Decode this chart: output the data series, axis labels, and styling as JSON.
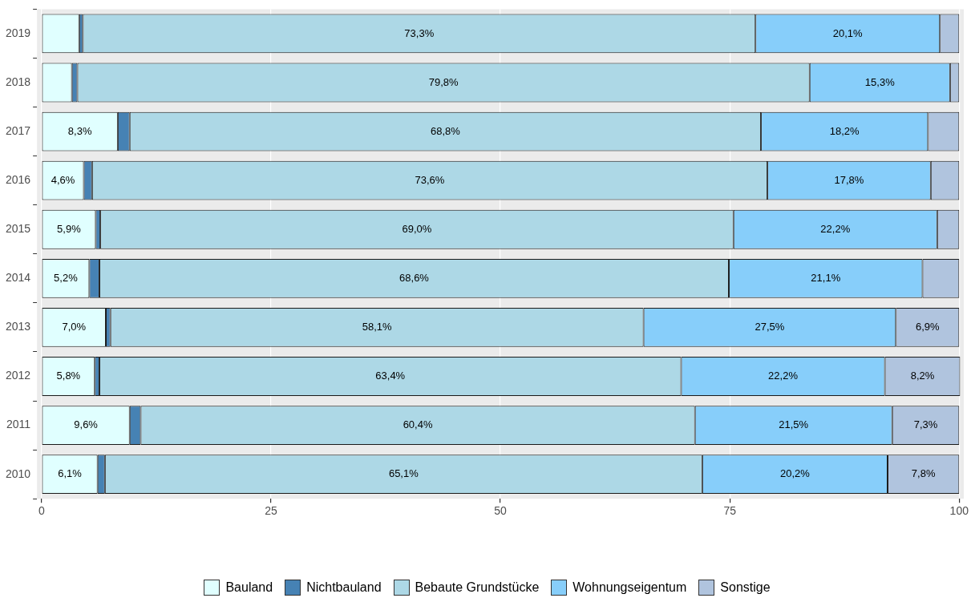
{
  "chart_data": {
    "type": "bar",
    "orientation": "horizontal",
    "stacked": true,
    "categories": [
      "2019",
      "2018",
      "2017",
      "2016",
      "2015",
      "2014",
      "2013",
      "2012",
      "2011",
      "2010"
    ],
    "series": [
      {
        "name": "Bauland",
        "color": "#e0ffff",
        "values": [
          4.1,
          3.3,
          8.3,
          4.6,
          5.9,
          5.2,
          7.0,
          5.8,
          9.6,
          6.1
        ],
        "value_labels": [
          null,
          null,
          "8,3%",
          "4,6%",
          "5,9%",
          "5,2%",
          "7,0%",
          "5,8%",
          "9,6%",
          "6,1%"
        ]
      },
      {
        "name": "Nichtbauland",
        "color": "#4682b4",
        "values": [
          0.4,
          0.6,
          1.3,
          0.9,
          0.5,
          1.1,
          0.5,
          0.5,
          1.2,
          0.8
        ],
        "value_labels": [
          null,
          null,
          null,
          null,
          null,
          null,
          null,
          null,
          null,
          null
        ]
      },
      {
        "name": "Bebaute Grundstücke",
        "color": "#add8e6",
        "values": [
          73.3,
          79.8,
          68.8,
          73.6,
          69.0,
          68.6,
          58.1,
          63.4,
          60.4,
          65.1
        ],
        "value_labels": [
          "73,3%",
          "79,8%",
          "68,8%",
          "73,6%",
          "69,0%",
          "68,6%",
          "58,1%",
          "63,4%",
          "60,4%",
          "65,1%"
        ]
      },
      {
        "name": "Wohnungseigentum",
        "color": "#87cefa",
        "values": [
          20.1,
          15.3,
          18.2,
          17.8,
          22.2,
          21.1,
          27.5,
          22.2,
          21.5,
          20.2
        ],
        "value_labels": [
          "20,1%",
          "15,3%",
          "18,2%",
          "17,8%",
          "22,2%",
          "21,1%",
          "27,5%",
          "22,2%",
          "21,5%",
          "20,2%"
        ]
      },
      {
        "name": "Sonstige",
        "color": "#b0c4de",
        "values": [
          2.1,
          1.0,
          3.4,
          3.1,
          2.4,
          4.0,
          6.9,
          8.2,
          7.3,
          7.8
        ],
        "value_labels": [
          null,
          null,
          null,
          null,
          null,
          null,
          "6,9%",
          "8,2%",
          "7,3%",
          "7,8%"
        ]
      }
    ],
    "xlim": [
      -0.5,
      100.5
    ],
    "xticks": [
      0,
      25,
      50,
      75,
      100
    ],
    "grid": "x",
    "legend": "bottom"
  }
}
